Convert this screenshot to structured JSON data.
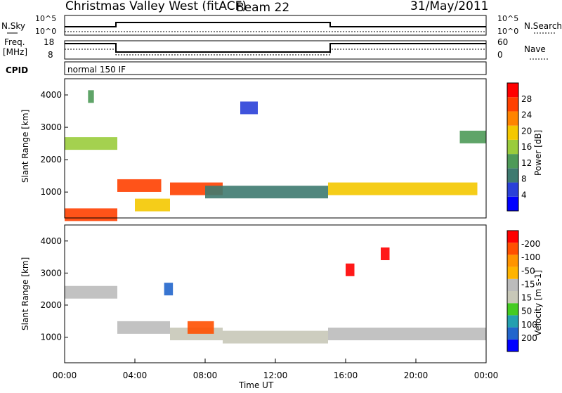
{
  "header": {
    "station": "Christmas Valley West (fitACF)",
    "beam": "Beam 22",
    "date": "31/May/2011"
  },
  "top_panels": {
    "nsky_label": "N.Sky",
    "nsky_ticks": [
      "10^5",
      "10^0"
    ],
    "nsearch_label": "N.Search",
    "nsearch_ticks": [
      "10^5",
      "10^0"
    ],
    "freq_label": "Freq.",
    "freq_unit": "[MHz]",
    "freq_ticks": [
      "18",
      "8"
    ],
    "nave_label": "Nave",
    "nave_ticks": [
      "60",
      "0"
    ],
    "cpid_label": "CPID",
    "cpid_value": "normal 150 IF"
  },
  "colors": {
    "power_scale": [
      "#0000ff",
      "#2a40d8",
      "#3e7a70",
      "#4e9a58",
      "#9acc3c",
      "#f4c800",
      "#ff8400",
      "#ff4000",
      "#ff0000"
    ],
    "velocity_scale": [
      "#ff0000",
      "#ff5000",
      "#ff9400",
      "#ffb400",
      "#bbbbbb",
      "#c8c8b8",
      "#44cc22",
      "#24a0b0",
      "#2266cc",
      "#0000ff"
    ],
    "ground_scatter": "#bbbbbb"
  },
  "chart_data": [
    {
      "type": "line",
      "title": "N.Sky / N.Search",
      "x": [
        "00:00",
        "03:00",
        "03:00",
        "15:00",
        "15:00",
        "24:00"
      ],
      "series": [
        {
          "name": "N.Sky",
          "values": [
            2,
            2,
            3,
            3,
            2,
            2
          ]
        },
        {
          "name": "N.Search",
          "values": [
            0.5,
            0.5,
            0.5,
            0.5,
            0.5,
            0.5
          ]
        }
      ],
      "ylim": [
        0,
        5
      ]
    },
    {
      "type": "line",
      "title": "Freq. / Nave",
      "x": [
        "00:00",
        "03:00",
        "03:00",
        "15:00",
        "15:00",
        "24:00"
      ],
      "series": [
        {
          "name": "Freq.",
          "values": [
            16.5,
            16.5,
            10,
            10,
            16.5,
            16.5
          ]
        }
      ],
      "ylim": [
        8,
        18
      ]
    },
    {
      "type": "heatmap",
      "title": "Power",
      "xlabel": "Time UT",
      "ylabel": "Slant Range [km]",
      "xlim": [
        "00:00",
        "24:00"
      ],
      "x_ticks": [
        "00:00",
        "04:00",
        "08:00",
        "12:00",
        "16:00",
        "20:00",
        "00:00"
      ],
      "ylim": [
        200,
        4500
      ],
      "y_ticks": [
        "1000",
        "2000",
        "3000",
        "4000"
      ],
      "colorbar_label": "Power [dB]",
      "colorbar_ticks": [
        "4",
        "8",
        "12",
        "16",
        "20",
        "24",
        "28"
      ],
      "features": [
        {
          "start": "00:00",
          "end": "03:00",
          "range_km": 300,
          "level": 26
        },
        {
          "start": "00:00",
          "end": "03:00",
          "range_km": 2500,
          "level": 16
        },
        {
          "start": "01:20",
          "end": "01:40",
          "range_km": 3950,
          "level": 14
        },
        {
          "start": "03:00",
          "end": "05:30",
          "range_km": 1200,
          "level": 26
        },
        {
          "start": "04:00",
          "end": "06:00",
          "range_km": 600,
          "level": 20
        },
        {
          "start": "06:00",
          "end": "09:00",
          "range_km": 1100,
          "level": 26
        },
        {
          "start": "08:00",
          "end": "15:00",
          "range_km": 1000,
          "level": 10
        },
        {
          "start": "10:00",
          "end": "11:00",
          "range_km": 3600,
          "level": 6
        },
        {
          "start": "15:00",
          "end": "23:30",
          "range_km": 1100,
          "level": 18
        },
        {
          "start": "22:30",
          "end": "24:00",
          "range_km": 2700,
          "level": 12
        }
      ]
    },
    {
      "type": "heatmap",
      "title": "Velocity",
      "xlabel": "Time UT",
      "ylabel": "Slant Range [km]",
      "xlim": [
        "00:00",
        "24:00"
      ],
      "x_ticks": [
        "00:00",
        "04:00",
        "08:00",
        "12:00",
        "16:00",
        "20:00",
        "00:00"
      ],
      "ylim": [
        200,
        4500
      ],
      "y_ticks": [
        "1000",
        "2000",
        "3000",
        "4000"
      ],
      "colorbar_label": "Velocity [m s-1]",
      "colorbar_ticks": [
        "200",
        "100",
        "50",
        "15",
        "-15",
        "-50",
        "-100",
        "-200"
      ],
      "features": [
        {
          "start": "00:00",
          "end": "03:00",
          "range_km": 2400,
          "velocity": 0
        },
        {
          "start": "03:00",
          "end": "06:00",
          "range_km": 1300,
          "velocity": 0
        },
        {
          "start": "05:40",
          "end": "06:10",
          "range_km": 2500,
          "velocity": 220
        },
        {
          "start": "06:00",
          "end": "09:00",
          "range_km": 1100,
          "velocity": 40
        },
        {
          "start": "07:00",
          "end": "08:30",
          "range_km": 1300,
          "velocity": -150
        },
        {
          "start": "09:00",
          "end": "15:00",
          "range_km": 1000,
          "velocity": 30
        },
        {
          "start": "15:00",
          "end": "24:00",
          "range_km": 1100,
          "velocity": 0
        },
        {
          "start": "16:00",
          "end": "16:30",
          "range_km": 3100,
          "velocity": -200
        },
        {
          "start": "18:00",
          "end": "18:30",
          "range_km": 3600,
          "velocity": -200
        }
      ]
    }
  ]
}
